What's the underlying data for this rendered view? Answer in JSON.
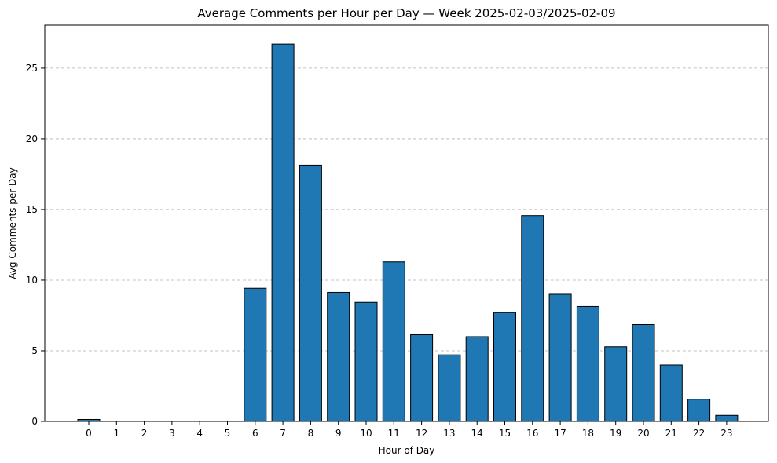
{
  "chart_data": {
    "type": "bar",
    "title": "Average Comments per Hour per Day — Week 2025-02-03/2025-02-09",
    "xlabel": "Hour of Day",
    "ylabel": "Avg Comments per Day",
    "categories": [
      "0",
      "1",
      "2",
      "3",
      "4",
      "5",
      "6",
      "7",
      "8",
      "9",
      "10",
      "11",
      "12",
      "13",
      "14",
      "15",
      "16",
      "17",
      "18",
      "19",
      "20",
      "21",
      "22",
      "23"
    ],
    "values": [
      0.14,
      0,
      0,
      0,
      0,
      0,
      9.43,
      26.71,
      18.14,
      9.14,
      8.43,
      11.29,
      6.14,
      4.71,
      6.0,
      7.71,
      14.57,
      9.0,
      8.14,
      5.29,
      6.86,
      4.0,
      1.57,
      0.43
    ],
    "ylim": [
      0,
      28.05
    ],
    "yticks": [
      0,
      5,
      10,
      15,
      20,
      25
    ],
    "grid": "y-dashed",
    "bar_color": "#1f77b4"
  }
}
